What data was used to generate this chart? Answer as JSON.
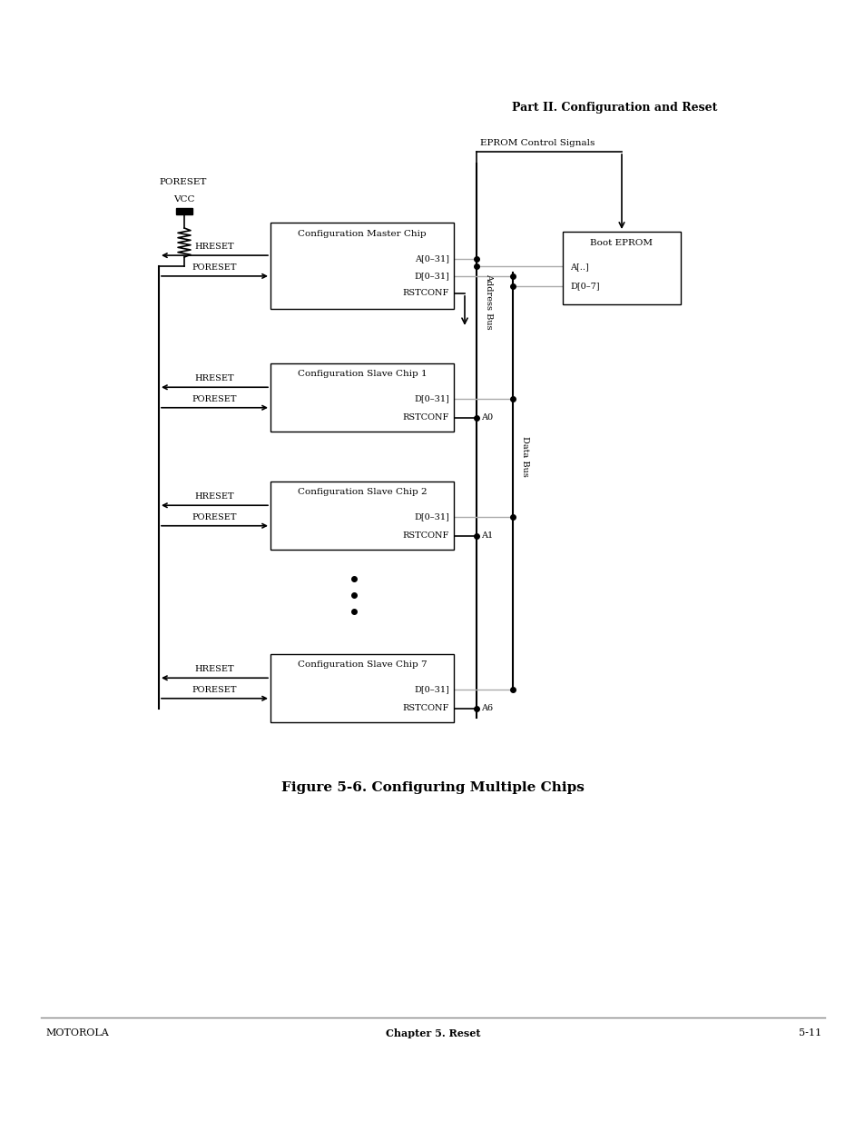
{
  "title_top": "Part II. Configuration and Reset",
  "figure_caption": "Figure 5-6. Configuring Multiple Chips",
  "footer_left": "MOTOROLA",
  "footer_center": "Chapter 5. Reset",
  "footer_right": "5-11",
  "bg_color": "#ffffff",
  "line_color": "#000000",
  "gray_line_color": "#aaaaaa",
  "lw_main": 1.2,
  "lw_bus": 1.5,
  "lw_gray": 1.0
}
